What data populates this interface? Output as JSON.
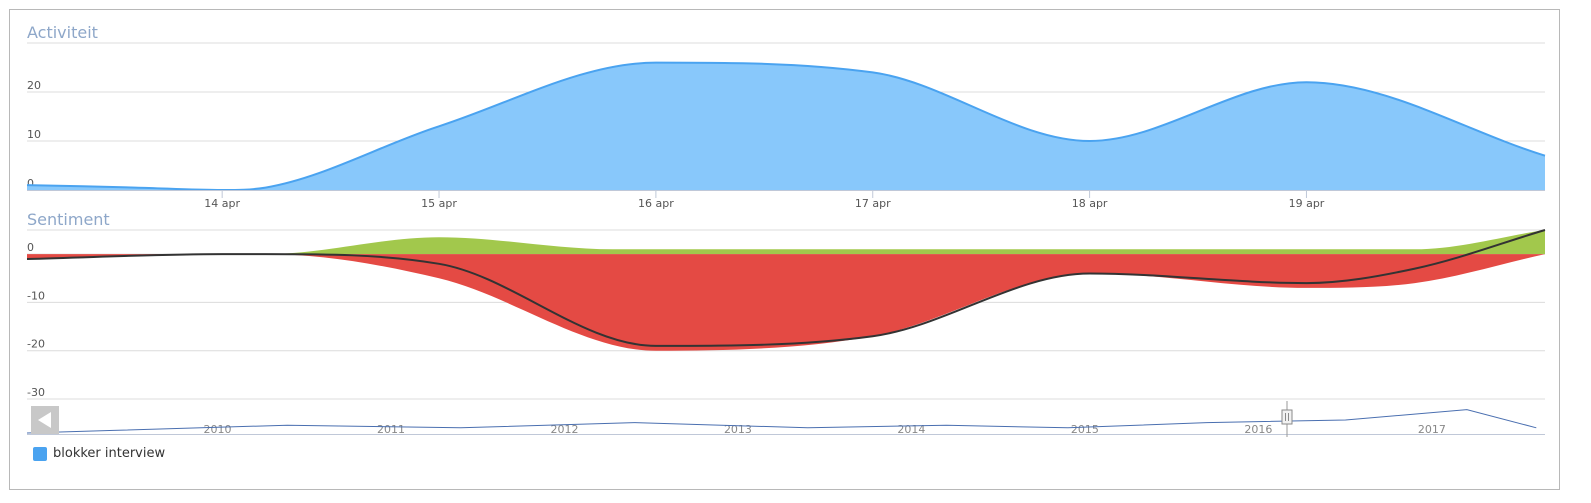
{
  "chart_data": [
    {
      "type": "area",
      "title": "Activiteit",
      "xlabel": "",
      "ylabel": "",
      "x_ticks": [
        "14 apr",
        "15 apr",
        "16 apr",
        "17 apr",
        "18 apr",
        "19 apr"
      ],
      "y_ticks": [
        "0",
        "10",
        "20"
      ],
      "ylim": [
        0,
        30
      ],
      "xlim": [
        13.1,
        20.1
      ],
      "series": [
        {
          "color": "#88c8fb",
          "x": [
            13.1,
            13.6,
            14.0,
            14.2,
            15.0,
            16.0,
            17.0,
            18.0,
            19.0,
            20.1
          ],
          "y": [
            1,
            0.5,
            0,
            0.5,
            13,
            26,
            24,
            10,
            22,
            7
          ]
        }
      ]
    },
    {
      "type": "area",
      "title": "Sentiment",
      "xlabel": "",
      "ylabel": "",
      "y_ticks": [
        "0",
        "-10",
        "-20",
        "-30"
      ],
      "ylim": [
        -30,
        5
      ],
      "xlim": [
        13.1,
        20.1
      ],
      "series": [
        {
          "color": "#a2c84c",
          "x": [
            13.1,
            14.0,
            14.2,
            15.0,
            15.8,
            16.0,
            17.0,
            18.0,
            19.0,
            19.5,
            20.1
          ],
          "y": [
            0,
            0,
            0,
            3.5,
            1,
            1,
            1,
            1,
            1,
            1,
            5
          ]
        },
        {
          "color": "#e44a44",
          "x": [
            13.1,
            14.0,
            14.2,
            15.0,
            16.0,
            17.0,
            18.0,
            19.0,
            19.5,
            20.1
          ],
          "y": [
            -1,
            0,
            0,
            -5,
            -20,
            -17,
            -4,
            -7,
            -6,
            0
          ]
        },
        {
          "color": "#333333",
          "x": [
            13.1,
            14.0,
            14.2,
            15.0,
            16.0,
            17.0,
            18.0,
            19.0,
            19.5,
            20.1
          ],
          "y": [
            -1,
            0,
            0,
            -2,
            -19,
            -17,
            -4,
            -6,
            -3,
            5
          ]
        }
      ]
    },
    {
      "type": "line",
      "x_ticks": [
        "2010",
        "2011",
        "2012",
        "2013",
        "2014",
        "2015",
        "2016",
        "2017"
      ],
      "navigator": true,
      "series": [
        {
          "color": "#4a6fb0",
          "x": [
            2009.0,
            2009.5,
            2010.5,
            2011.5,
            2012.5,
            2013.5,
            2014.3,
            2015.0,
            2015.8,
            2016.6,
            2017.3,
            2017.7
          ],
          "y": [
            0,
            1,
            3,
            2,
            4,
            2,
            3,
            2,
            4,
            5,
            9,
            2
          ]
        }
      ]
    }
  ],
  "legend": {
    "items": [
      {
        "label": "blokker interview",
        "color": "#4aa3f0"
      }
    ]
  }
}
